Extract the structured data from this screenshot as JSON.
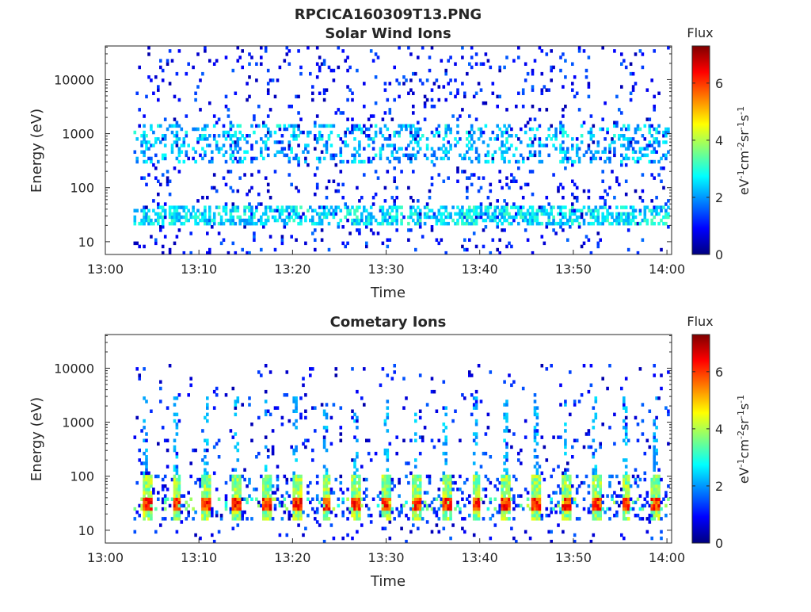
{
  "figure": {
    "file_title": "RPCICA160309T13.PNG"
  },
  "colormap": {
    "name": "jet",
    "stops": [
      "#00007f",
      "#0000ff",
      "#007fff",
      "#00ffff",
      "#7fff7f",
      "#ffff00",
      "#ff7f00",
      "#ff0000",
      "#7f0000"
    ]
  },
  "chart_data": [
    {
      "type": "heatmap",
      "title": "Solar Wind Ions",
      "xlabel": "Time",
      "ylabel": "Energy (eV)",
      "yscale": "log",
      "x_ticks": [
        "13:00",
        "13:10",
        "13:20",
        "13:30",
        "13:40",
        "13:50",
        "14:00"
      ],
      "x_range_minutes": [
        0,
        60.5
      ],
      "x_data_start_minutes": 3,
      "y_ticks": [
        "10",
        "100",
        "1000",
        "10000"
      ],
      "y_tick_values": [
        10,
        100,
        1000,
        10000
      ],
      "y_range": [
        5.8,
        42000
      ],
      "colorbar": {
        "title": "Flux",
        "label": "eV⁻¹cm⁻²sr⁻¹s⁻¹",
        "range": [
          0,
          7.3
        ],
        "ticks": [
          "0",
          "2",
          "4",
          "6"
        ],
        "tick_values": [
          0,
          2,
          4,
          6
        ]
      },
      "bands": [
        {
          "energy_range": [
            20,
            45
          ],
          "typical_flux": 2.6
        },
        {
          "energy_range": [
            700,
            1500
          ],
          "typical_flux": 2.4
        },
        {
          "energy_range": [
            300,
            700
          ],
          "typical_flux": 2.2
        }
      ],
      "sweep_period_minutes": 3.2,
      "background": {
        "energy_range": [
          6,
          40000
        ],
        "typical_flux": 1.0
      }
    },
    {
      "type": "heatmap",
      "title": "Cometary Ions",
      "xlabel": "Time",
      "ylabel": "Energy (eV)",
      "yscale": "log",
      "x_ticks": [
        "13:00",
        "13:10",
        "13:20",
        "13:30",
        "13:40",
        "13:50",
        "14:00"
      ],
      "x_range_minutes": [
        0,
        60.5
      ],
      "x_data_start_minutes": 3,
      "y_ticks": [
        "10",
        "100",
        "1000",
        "10000"
      ],
      "y_tick_values": [
        10,
        100,
        1000,
        10000
      ],
      "y_range": [
        5.8,
        42000
      ],
      "colorbar": {
        "title": "Flux",
        "label": "eV⁻¹cm⁻²sr⁻¹s⁻¹",
        "range": [
          0,
          7.3
        ],
        "ticks": [
          "0",
          "2",
          "4",
          "6"
        ],
        "tick_values": [
          0,
          2,
          4,
          6
        ]
      },
      "bands": [
        {
          "energy_range": [
            22,
            38
          ],
          "typical_flux": 6.0
        },
        {
          "energy_range": [
            15,
            110
          ],
          "typical_flux": 3.8
        }
      ],
      "sweep_period_minutes": 3.2,
      "background": {
        "energy_range": [
          6,
          12000
        ],
        "typical_flux": 1.0
      }
    }
  ]
}
